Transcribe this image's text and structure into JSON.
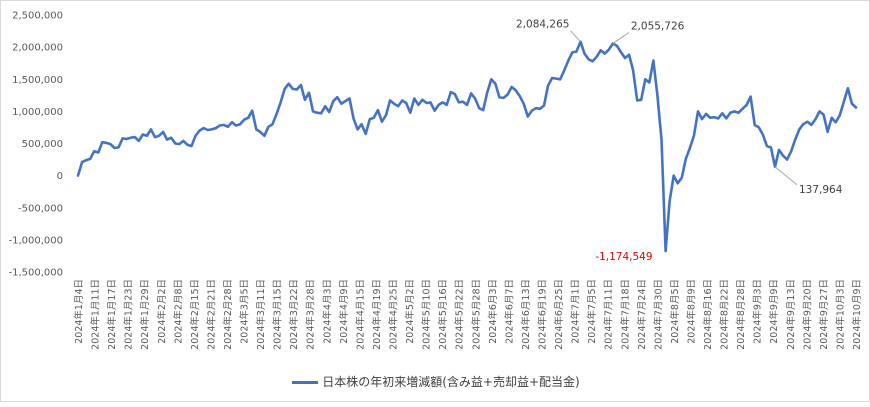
{
  "chart_data": {
    "type": "line",
    "title": "",
    "xlabel": "",
    "ylabel": "",
    "ylim": [
      -1500000,
      2500000
    ],
    "y_ticks": [
      "2,500,000",
      "2,000,000",
      "1,500,000",
      "1,000,000",
      "500,000",
      "0",
      "-500,000",
      "-1,000,000",
      "-1,500,000"
    ],
    "y_tick_values": [
      2500000,
      2000000,
      1500000,
      1000000,
      500000,
      0,
      -500000,
      -1000000,
      -1500000
    ],
    "x_tick_labels": [
      "2024年1月4日",
      "2024年1月11日",
      "2024年1月17日",
      "2024年1月23日",
      "2024年1月29日",
      "2024年2月2日",
      "2024年2月8日",
      "2024年2月15日",
      "2024年2月21日",
      "2024年2月28日",
      "2024年3月5日",
      "2024年3月11日",
      "2024年3月15日",
      "2024年3月22日",
      "2024年3月28日",
      "2024年4月3日",
      "2024年4月9日",
      "2024年4月15日",
      "2024年4月19日",
      "2024年4月25日",
      "2024年5月2日",
      "2024年5月10日",
      "2024年5月16日",
      "2024年5月22日",
      "2024年5月28日",
      "2024年6月3日",
      "2024年6月7日",
      "2024年6月13日",
      "2024年6月19日",
      "2024年6月25日",
      "2024年7月1日",
      "2024年7月5日",
      "2024年7月11日",
      "2024年7月18日",
      "2024年7月24日",
      "2024年7月30日",
      "2024年8月5日",
      "2024年8月9日",
      "2024年8月16日",
      "2024年8月22日",
      "2024年8月28日",
      "2024年9月3日",
      "2024年9月9日",
      "2024年9月13日",
      "2024年9月20日",
      "2024年9月27日",
      "2024年10月3日",
      "2024年10月9日"
    ],
    "grid": false,
    "legend_position": "bottom",
    "series": [
      {
        "name": "日本株の年初来増減額(含み益+売却益+配当金)",
        "color": "#4472c4",
        "values": [
          0,
          210000,
          240000,
          260000,
          380000,
          360000,
          520000,
          510000,
          490000,
          430000,
          440000,
          580000,
          570000,
          590000,
          600000,
          540000,
          640000,
          620000,
          720000,
          600000,
          620000,
          680000,
          560000,
          590000,
          500000,
          490000,
          540000,
          480000,
          460000,
          620000,
          700000,
          740000,
          710000,
          720000,
          740000,
          780000,
          790000,
          760000,
          830000,
          780000,
          800000,
          870000,
          900000,
          1010000,
          720000,
          680000,
          620000,
          760000,
          800000,
          960000,
          1140000,
          1350000,
          1430000,
          1350000,
          1340000,
          1410000,
          1180000,
          1290000,
          1000000,
          980000,
          970000,
          1080000,
          990000,
          1160000,
          1220000,
          1120000,
          1160000,
          1200000,
          890000,
          720000,
          800000,
          650000,
          880000,
          900000,
          1020000,
          840000,
          940000,
          1170000,
          1120000,
          1080000,
          1170000,
          1130000,
          980000,
          1200000,
          1100000,
          1180000,
          1130000,
          1140000,
          1010000,
          1100000,
          1140000,
          1100000,
          1300000,
          1270000,
          1140000,
          1150000,
          1100000,
          1280000,
          1200000,
          1050000,
          1020000,
          1300000,
          1500000,
          1430000,
          1220000,
          1210000,
          1260000,
          1380000,
          1330000,
          1240000,
          1120000,
          920000,
          1010000,
          1050000,
          1040000,
          1090000,
          1400000,
          1520000,
          1510000,
          1500000,
          1640000,
          1790000,
          1920000,
          1930000,
          2084265,
          1900000,
          1810000,
          1780000,
          1850000,
          1950000,
          1900000,
          1960000,
          2055726,
          2020000,
          1920000,
          1830000,
          1880000,
          1640000,
          1170000,
          1180000,
          1500000,
          1450000,
          1790000,
          1250000,
          560000,
          -1174549,
          -400000,
          0,
          -120000,
          -30000,
          260000,
          430000,
          620000,
          1000000,
          880000,
          960000,
          900000,
          910000,
          890000,
          970000,
          890000,
          980000,
          1000000,
          980000,
          1040000,
          1100000,
          1230000,
          790000,
          750000,
          640000,
          460000,
          440000,
          137964,
          400000,
          310000,
          250000,
          380000,
          560000,
          720000,
          800000,
          840000,
          790000,
          880000,
          1000000,
          950000,
          680000,
          900000,
          830000,
          940000,
          1150000,
          1360000,
          1120000,
          1060000
        ]
      }
    ],
    "annotations": [
      {
        "text": "2,084,265",
        "value": 2084265,
        "color": "#404040"
      },
      {
        "text": "2,055,726",
        "value": 2055726,
        "color": "#404040"
      },
      {
        "text": "-1,174,549",
        "value": -1174549,
        "color": "#e00000"
      },
      {
        "text": "137,964",
        "value": 137964,
        "color": "#404040"
      }
    ]
  }
}
